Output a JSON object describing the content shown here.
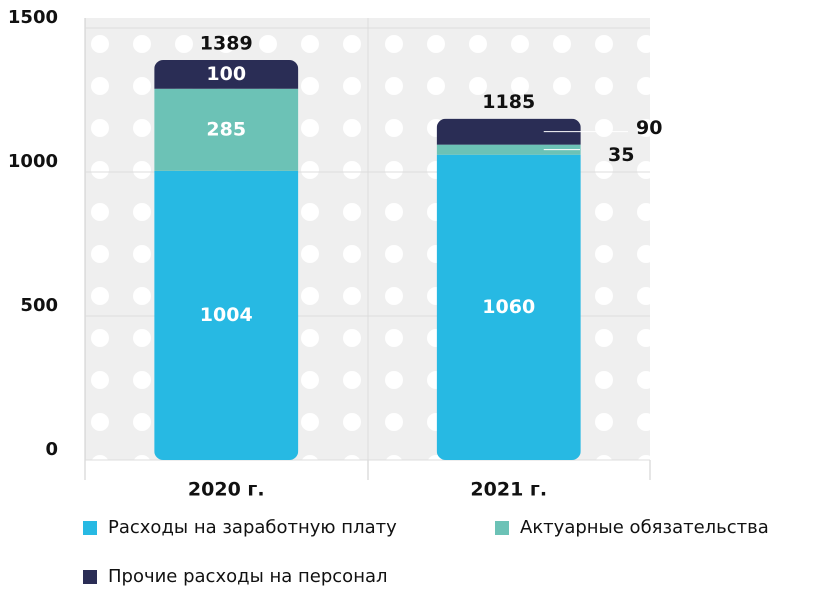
{
  "chart_data": {
    "type": "bar",
    "stacked": true,
    "categories": [
      "2020 г.",
      "2021 г."
    ],
    "series": [
      {
        "name": "Расходы на заработную плату",
        "color": "#27b9e3",
        "values": [
          1004,
          1060
        ]
      },
      {
        "name": "Актуарные обязательства",
        "color": "#6cc2b6",
        "values": [
          285,
          35
        ]
      },
      {
        "name": "Прочие расходы на персонал",
        "color": "#2a2d55",
        "values": [
          100,
          90
        ]
      }
    ],
    "totals": [
      1389,
      1185
    ],
    "ylim": [
      0,
      1500
    ],
    "yticks": [
      0,
      500,
      1000,
      1500
    ],
    "grid": true
  }
}
